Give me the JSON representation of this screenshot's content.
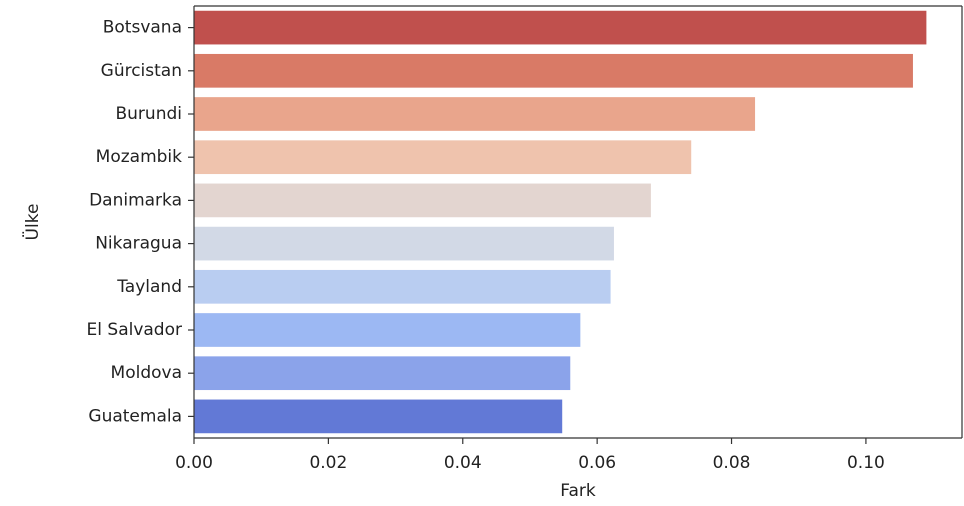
{
  "chart_data": {
    "type": "bar",
    "orientation": "horizontal",
    "title": "",
    "xlabel": "Fark",
    "ylabel": "Ülke",
    "categories": [
      "Botsvana",
      "Gürcistan",
      "Burundi",
      "Mozambik",
      "Danimarka",
      "Nikaragua",
      "Tayland",
      "El Salvador",
      "Moldova",
      "Guatemala"
    ],
    "values": [
      0.109,
      0.107,
      0.0835,
      0.074,
      0.068,
      0.0625,
      0.062,
      0.0575,
      0.056,
      0.0548
    ],
    "colors": [
      "#c0504d",
      "#d97a66",
      "#e9a58c",
      "#efc3ad",
      "#e3d5d0",
      "#d2d9e6",
      "#b9cdf1",
      "#9cb8f3",
      "#8ba3ea",
      "#6279d6"
    ],
    "xlim": [
      0,
      0.1143
    ],
    "xticks": [
      0.0,
      0.02,
      0.04,
      0.06,
      0.08,
      0.1
    ],
    "xtick_labels": [
      "0.00",
      "0.02",
      "0.04",
      "0.06",
      "0.08",
      "0.10"
    ],
    "grid": false,
    "legend": "none"
  }
}
